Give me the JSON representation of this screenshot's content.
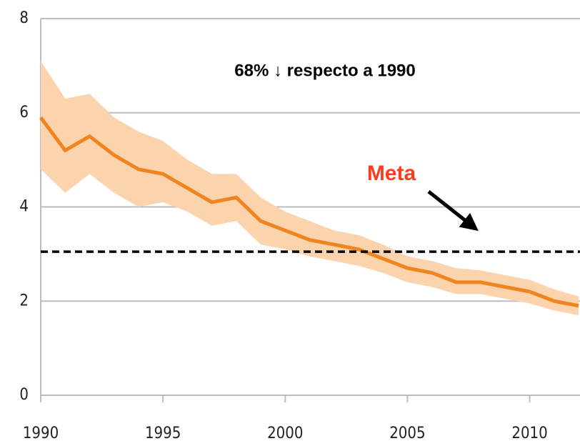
{
  "chart_data": {
    "type": "line",
    "x": [
      1990,
      1991,
      1992,
      1993,
      1994,
      1995,
      1996,
      1997,
      1998,
      1999,
      2000,
      2001,
      2002,
      2003,
      2004,
      2005,
      2006,
      2007,
      2008,
      2009,
      2010,
      2011,
      2012
    ],
    "series": [
      {
        "color": "#f0841f",
        "values": [
          5.9,
          5.2,
          5.5,
          5.1,
          4.8,
          4.7,
          4.4,
          4.1,
          4.2,
          3.7,
          3.5,
          3.3,
          3.2,
          3.1,
          2.9,
          2.7,
          2.6,
          2.4,
          2.4,
          2.3,
          2.2,
          2.0,
          1.9
        ],
        "upper": [
          7.1,
          6.3,
          6.4,
          5.9,
          5.6,
          5.4,
          5.0,
          4.7,
          4.7,
          4.2,
          3.9,
          3.7,
          3.5,
          3.4,
          3.2,
          2.95,
          2.85,
          2.7,
          2.65,
          2.55,
          2.45,
          2.25,
          2.1
        ],
        "lower": [
          4.8,
          4.3,
          4.7,
          4.3,
          4.0,
          4.1,
          3.9,
          3.6,
          3.7,
          3.2,
          3.1,
          2.95,
          2.85,
          2.75,
          2.6,
          2.4,
          2.3,
          2.15,
          2.15,
          2.05,
          1.95,
          1.8,
          1.7
        ],
        "band_color": "#fbd3ad"
      }
    ],
    "reference_line": 3.05,
    "annotations": [
      "68% ↓ respecto a 1990",
      "Meta"
    ],
    "xlim": [
      1990,
      2012
    ],
    "xticks": [
      1990,
      1995,
      2000,
      2005,
      2010
    ],
    "ylim": [
      0,
      8
    ],
    "yticks": [
      0,
      2,
      4,
      6,
      8
    ],
    "grid": true
  }
}
